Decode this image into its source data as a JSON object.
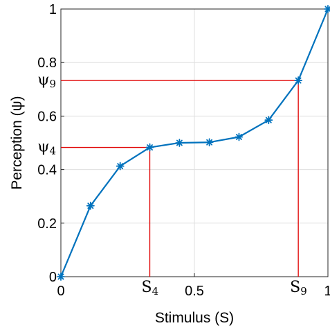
{
  "chart_data": {
    "type": "line",
    "xlabel": "Stimulus (S)",
    "ylabel": "Perception (ψ)",
    "xlim": [
      0,
      1
    ],
    "ylim": [
      0,
      1
    ],
    "xticks": [
      {
        "value": 0,
        "label": "0"
      },
      {
        "value": 0.5,
        "label": "0.5"
      },
      {
        "value": 1,
        "label": "1"
      }
    ],
    "yticks": [
      {
        "value": 0,
        "label": "0"
      },
      {
        "value": 0.2,
        "label": "0.2"
      },
      {
        "value": 0.4,
        "label": "0.4"
      },
      {
        "value": 0.6,
        "label": "0.6"
      },
      {
        "value": 0.8,
        "label": "0.8"
      },
      {
        "value": 1,
        "label": "1"
      }
    ],
    "grid": true,
    "series_color": "#0072bd",
    "guide_color": "#e00000",
    "marker": "asterisk",
    "x": [
      0,
      0.111,
      0.222,
      0.333,
      0.444,
      0.556,
      0.667,
      0.778,
      0.889,
      1
    ],
    "y": [
      0,
      0.265,
      0.413,
      0.483,
      0.5,
      0.502,
      0.522,
      0.585,
      0.733,
      1
    ],
    "annotations": [
      {
        "name": "psi-4",
        "x": 0.333,
        "y": 0.483,
        "x_symbol": "S",
        "x_sub": "4",
        "y_symbol": "ψ",
        "y_sub": "4"
      },
      {
        "name": "psi-9",
        "x": 0.889,
        "y": 0.733,
        "x_symbol": "S",
        "x_sub": "9",
        "y_symbol": "ψ",
        "y_sub": "9"
      }
    ]
  }
}
